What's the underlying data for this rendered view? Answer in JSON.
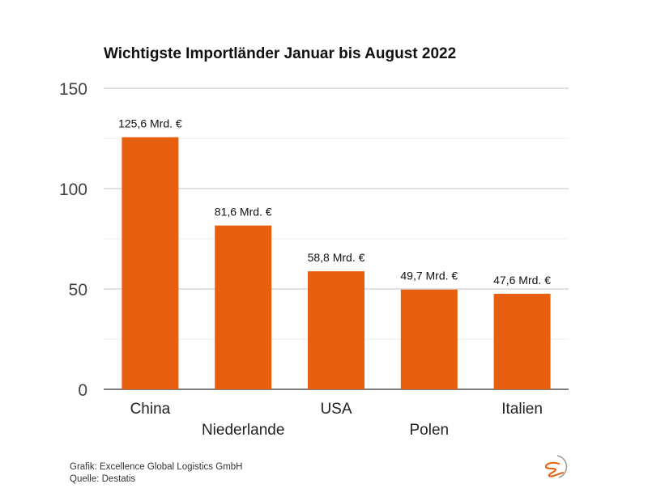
{
  "chart_data": {
    "type": "bar",
    "title": "Wichtigste Importländer Januar bis August 2022",
    "categories": [
      "China",
      "Niederlande",
      "USA",
      "Polen",
      "Italien"
    ],
    "values": [
      125.6,
      81.6,
      58.8,
      49.7,
      47.6
    ],
    "data_labels": [
      "125,6 Mrd. €",
      "81,6 Mrd. €",
      "58,8 Mrd. €",
      "49,7 Mrd. €",
      "47,6 Mrd. €"
    ],
    "xlabel": "",
    "ylabel": "",
    "ylim": [
      0,
      150
    ],
    "yticks": [
      0,
      50,
      100,
      150
    ],
    "minor_gridlines": [
      25,
      75,
      125
    ],
    "grid": true,
    "bar_color": "#e8600f"
  },
  "footer": {
    "grafik": "Grafik: Excellence Global Logistics GmbH",
    "quelle": "Quelle: Destatis"
  },
  "logo_colors": {
    "accent": "#e8600f",
    "ring": "#999999"
  }
}
